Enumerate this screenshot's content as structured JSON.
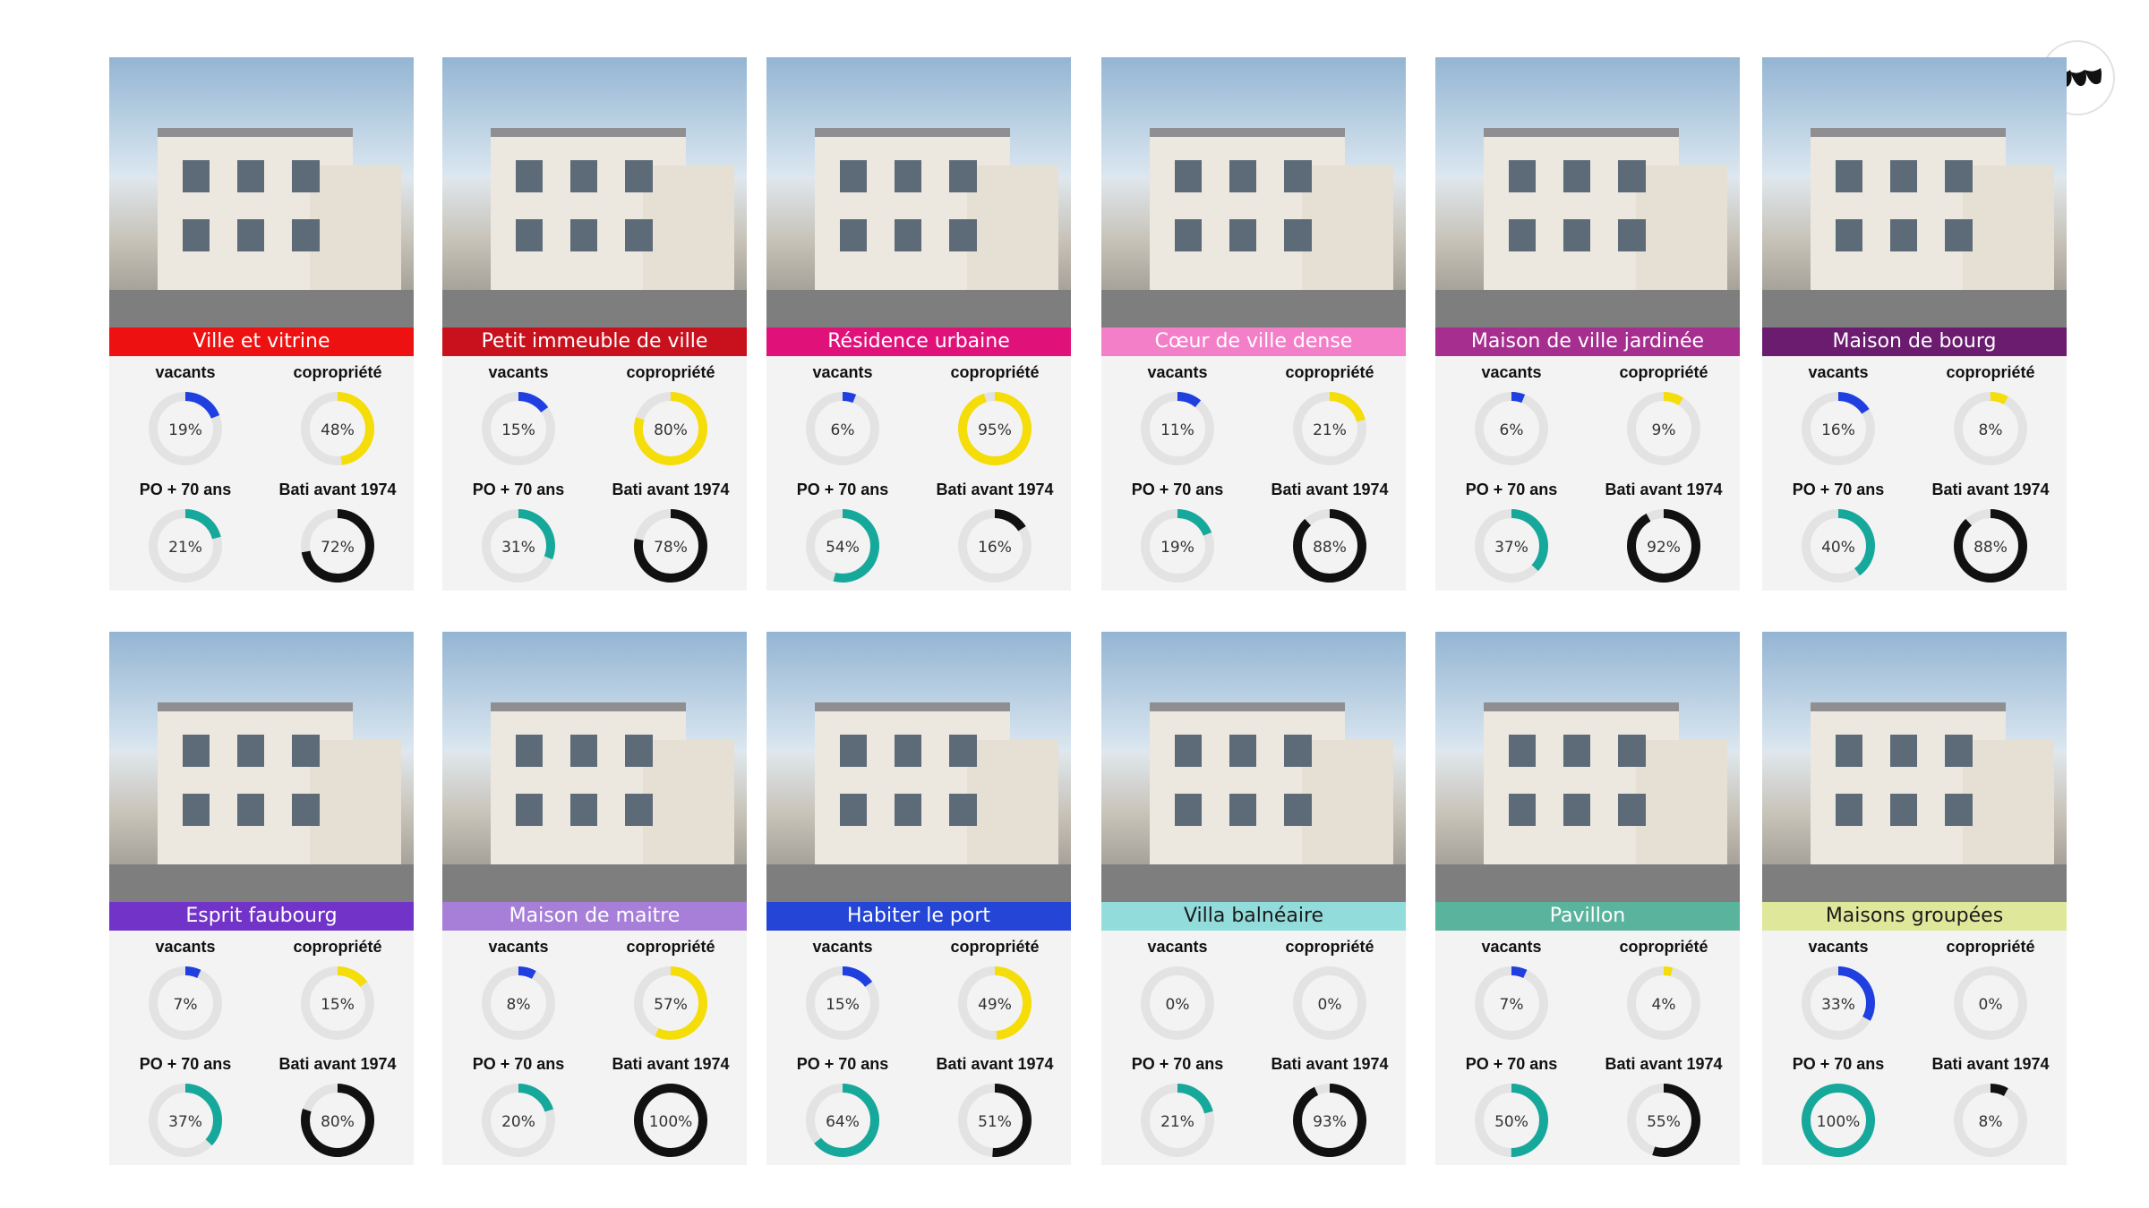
{
  "colors": {
    "vacants": "#1f3fe0",
    "copropriete": "#f5dd0a",
    "po70": "#16a89a",
    "bati": "#111111",
    "ring_bg": "#e3e3e3"
  },
  "stat_titles": {
    "vacants": "vacants",
    "copropriete": "copropriété",
    "po70": "PO + 70 ans",
    "bati": "Bati avant 1974"
  },
  "cards": [
    {
      "label": "Ville et vitrine",
      "color": "#ee1111",
      "text_color": "#ffffff",
      "stats": {
        "vacants": "19%",
        "copropriete": "48%",
        "po70": "21%",
        "bati": "72%"
      },
      "values": {
        "vacants": 0.19,
        "copropriete": 0.48,
        "po70": 0.21,
        "bati": 0.72
      }
    },
    {
      "label": "Petit immeuble de ville",
      "color": "#c8111c",
      "text_color": "#ffffff",
      "stats": {
        "vacants": "15%",
        "copropriete": "80%",
        "po70": "31%",
        "bati": "78%"
      },
      "values": {
        "vacants": 0.15,
        "copropriete": 0.8,
        "po70": 0.31,
        "bati": 0.78
      }
    },
    {
      "label": "Résidence urbaine",
      "color": "#e0127a",
      "text_color": "#ffffff",
      "stats": {
        "vacants": "6%",
        "copropriete": "95%",
        "po70": "54%",
        "bati": "16%"
      },
      "values": {
        "vacants": 0.06,
        "copropriete": 0.95,
        "po70": 0.54,
        "bati": 0.16
      }
    },
    {
      "label": "Cœur de ville dense",
      "color": "#f37fc8",
      "text_color": "#ffffff",
      "stats": {
        "vacants": "11%",
        "copropriete": "21%",
        "po70": "19%",
        "bati": "88%"
      },
      "values": {
        "vacants": 0.11,
        "copropriete": 0.21,
        "po70": 0.19,
        "bati": 0.88
      }
    },
    {
      "label": "Maison de ville jardinée",
      "color": "#a62e8f",
      "text_color": "#ffffff",
      "stats": {
        "vacants": "6%",
        "copropriete": "9%",
        "po70": "37%",
        "bati": "92%"
      },
      "values": {
        "vacants": 0.06,
        "copropriete": 0.09,
        "po70": 0.37,
        "bati": 0.92
      }
    },
    {
      "label": "Maison de bourg",
      "color": "#6b1c6f",
      "text_color": "#ffffff",
      "stats": {
        "vacants": "16%",
        "copropriete": "8%",
        "po70": "40%",
        "bati": "88%"
      },
      "values": {
        "vacants": 0.16,
        "copropriete": 0.08,
        "po70": 0.4,
        "bati": 0.88
      }
    },
    {
      "label": "Esprit faubourg",
      "color": "#7133c8",
      "text_color": "#ffffff",
      "stats": {
        "vacants": "7%",
        "copropriete": "15%",
        "po70": "37%",
        "bati": "80%"
      },
      "values": {
        "vacants": 0.07,
        "copropriete": 0.15,
        "po70": 0.37,
        "bati": 0.8
      }
    },
    {
      "label": "Maison de maitre",
      "color": "#a77fd9",
      "text_color": "#ffffff",
      "stats": {
        "vacants": "8%",
        "copropriete": "57%",
        "po70": "20%",
        "bati": "100%"
      },
      "values": {
        "vacants": 0.08,
        "copropriete": 0.57,
        "po70": 0.2,
        "bati": 1.0
      }
    },
    {
      "label": "Habiter le port",
      "color": "#2545d6",
      "text_color": "#ffffff",
      "stats": {
        "vacants": "15%",
        "copropriete": "49%",
        "po70": "64%",
        "bati": "51%"
      },
      "values": {
        "vacants": 0.15,
        "copropriete": 0.49,
        "po70": 0.64,
        "bati": 0.51
      }
    },
    {
      "label": "Villa balnéaire",
      "color": "#92dcdb",
      "text_color": "#1a1a1a",
      "stats": {
        "vacants": "0%",
        "copropriete": "0%",
        "po70": "21%",
        "bati": "93%"
      },
      "values": {
        "vacants": 0.0,
        "copropriete": 0.0,
        "po70": 0.21,
        "bati": 0.93
      }
    },
    {
      "label": "Pavillon",
      "color": "#5ab39d",
      "text_color": "#ffffff",
      "stats": {
        "vacants": "7%",
        "copropriete": "4%",
        "po70": "50%",
        "bati": "55%"
      },
      "values": {
        "vacants": 0.07,
        "copropriete": 0.04,
        "po70": 0.5,
        "bati": 0.55
      }
    },
    {
      "label": "Maisons groupées",
      "color": "#dfe89a",
      "text_color": "#1a1a1a",
      "stats": {
        "vacants": "33%",
        "copropriete": "0%",
        "po70": "100%",
        "bati": "8%"
      },
      "values": {
        "vacants": 0.33,
        "copropriete": 0.0,
        "po70": 1.0,
        "bati": 0.08
      }
    }
  ]
}
